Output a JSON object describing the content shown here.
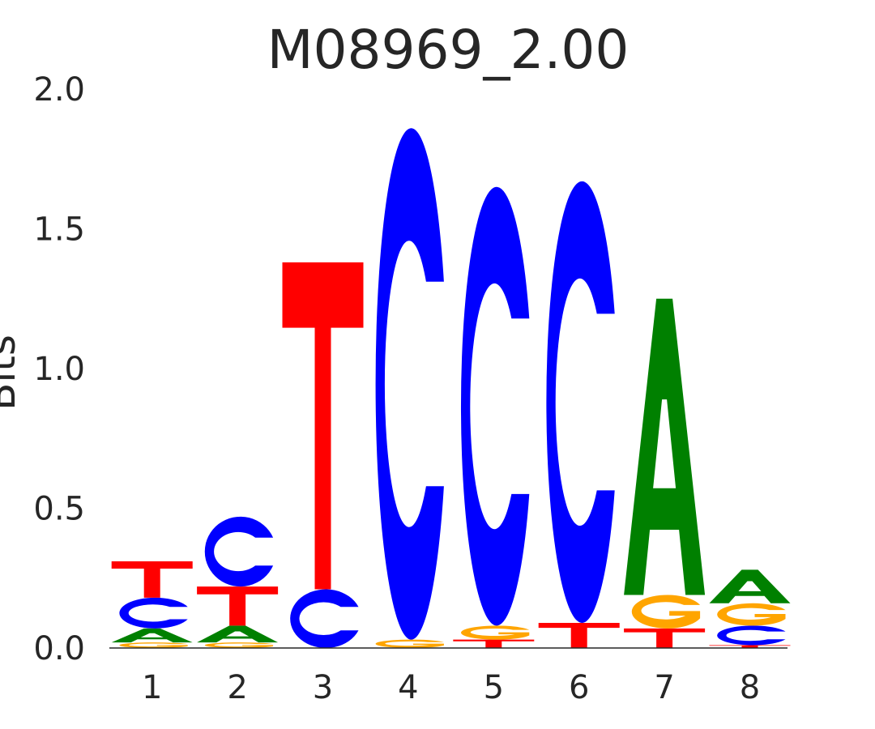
{
  "chart_data": {
    "type": "sequence-logo",
    "title": "M08969_2.00",
    "ylabel": "Bits",
    "ylim": [
      0,
      2.0
    ],
    "yticks": [
      "0.0",
      "0.5",
      "1.0",
      "1.5",
      "2.0"
    ],
    "positions": [
      "1",
      "2",
      "3",
      "4",
      "5",
      "6",
      "7",
      "8"
    ],
    "colors": {
      "A": "#008000",
      "C": "#0000ff",
      "G": "#ffa500",
      "T": "#ff0000"
    },
    "stacks": [
      [
        {
          "base": "G",
          "bits": 0.02
        },
        {
          "base": "A",
          "bits": 0.05
        },
        {
          "base": "C",
          "bits": 0.11
        },
        {
          "base": "T",
          "bits": 0.13
        }
      ],
      [
        {
          "base": "G",
          "bits": 0.02
        },
        {
          "base": "A",
          "bits": 0.06
        },
        {
          "base": "T",
          "bits": 0.14
        },
        {
          "base": "C",
          "bits": 0.25
        }
      ],
      [
        {
          "base": "C",
          "bits": 0.21
        },
        {
          "base": "T",
          "bits": 1.17
        }
      ],
      [
        {
          "base": "G",
          "bits": 0.03
        },
        {
          "base": "C",
          "bits": 1.83
        }
      ],
      [
        {
          "base": "T",
          "bits": 0.03
        },
        {
          "base": "G",
          "bits": 0.05
        },
        {
          "base": "C",
          "bits": 1.57
        }
      ],
      [
        {
          "base": "T",
          "bits": 0.09
        },
        {
          "base": "C",
          "bits": 1.58
        }
      ],
      [
        {
          "base": "T",
          "bits": 0.07
        },
        {
          "base": "G",
          "bits": 0.12
        },
        {
          "base": "A",
          "bits": 1.06
        }
      ],
      [
        {
          "base": "T",
          "bits": 0.01
        },
        {
          "base": "C",
          "bits": 0.07
        },
        {
          "base": "G",
          "bits": 0.08
        },
        {
          "base": "A",
          "bits": 0.12
        }
      ]
    ]
  }
}
